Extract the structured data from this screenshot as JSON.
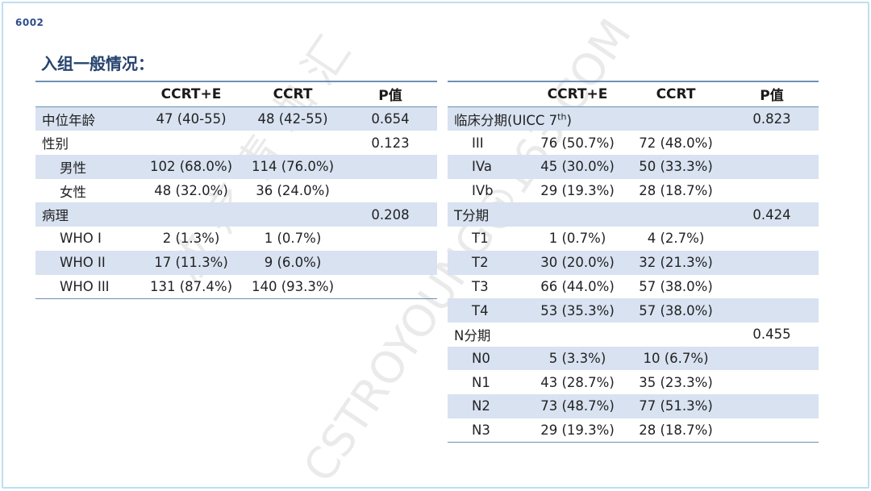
{
  "slide_id": "6002",
  "title": "入组一般情况：",
  "watermark": "放 疗 青 咖 汇",
  "watermark_sub": "CSTROYOUNG@163.COM",
  "left_table": {
    "headers": [
      "",
      "CCRT+E",
      "CCRT",
      "P值"
    ],
    "rows": [
      {
        "label": "中位年龄",
        "ccrt_e": "47 (40-55)",
        "ccrt": "48 (42-55)",
        "p": "0.654",
        "indent": false,
        "shade": true
      },
      {
        "label": "性别",
        "ccrt_e": "",
        "ccrt": "",
        "p": "0.123",
        "indent": false,
        "shade": false
      },
      {
        "label": "男性",
        "ccrt_e": "102 (68.0%)",
        "ccrt": "114 (76.0%)",
        "p": "",
        "indent": true,
        "shade": true
      },
      {
        "label": "女性",
        "ccrt_e": "48 (32.0%)",
        "ccrt": "36 (24.0%)",
        "p": "",
        "indent": true,
        "shade": false
      },
      {
        "label": "病理",
        "ccrt_e": "",
        "ccrt": "",
        "p": "0.208",
        "indent": false,
        "shade": true
      },
      {
        "label": "WHO I",
        "ccrt_e": "2 (1.3%)",
        "ccrt": "1 (0.7%)",
        "p": "",
        "indent": true,
        "shade": false
      },
      {
        "label": "WHO II",
        "ccrt_e": "17 (11.3%)",
        "ccrt": "9 (6.0%)",
        "p": "",
        "indent": true,
        "shade": true
      },
      {
        "label": "WHO III",
        "ccrt_e": "131 (87.4%)",
        "ccrt": "140 (93.3%)",
        "p": "",
        "indent": true,
        "shade": false
      }
    ]
  },
  "right_table": {
    "headers": [
      "",
      "CCRT+E",
      "CCRT",
      "P值"
    ],
    "rows": [
      {
        "label": "临床分期(UICC 7",
        "label_sup": "th",
        "label_tail": ")",
        "ccrt_e": "",
        "ccrt": "",
        "p": "0.823",
        "indent": false,
        "shade": true
      },
      {
        "label": "III",
        "ccrt_e": "76 (50.7%)",
        "ccrt": "72 (48.0%)",
        "p": "",
        "indent": true,
        "shade": false
      },
      {
        "label": "IVa",
        "ccrt_e": "45 (30.0%)",
        "ccrt": "50 (33.3%)",
        "p": "",
        "indent": true,
        "shade": true
      },
      {
        "label": "IVb",
        "ccrt_e": "29 (19.3%)",
        "ccrt": "28 (18.7%)",
        "p": "",
        "indent": true,
        "shade": false
      },
      {
        "label": "T分期",
        "ccrt_e": "",
        "ccrt": "",
        "p": "0.424",
        "indent": false,
        "shade": true
      },
      {
        "label": "T1",
        "ccrt_e": "1 (0.7%)",
        "ccrt": "4 (2.7%)",
        "p": "",
        "indent": true,
        "shade": false
      },
      {
        "label": "T2",
        "ccrt_e": "30 (20.0%)",
        "ccrt": "32 (21.3%)",
        "p": "",
        "indent": true,
        "shade": true
      },
      {
        "label": "T3",
        "ccrt_e": "66 (44.0%)",
        "ccrt": "57 (38.0%)",
        "p": "",
        "indent": true,
        "shade": false
      },
      {
        "label": "T4",
        "ccrt_e": "53 (35.3%)",
        "ccrt": "57 (38.0%)",
        "p": "",
        "indent": true,
        "shade": true
      },
      {
        "label": "N分期",
        "ccrt_e": "",
        "ccrt": "",
        "p": "0.455",
        "indent": false,
        "shade": false
      },
      {
        "label": "N0",
        "ccrt_e": "5 (3.3%)",
        "ccrt": "10 (6.7%)",
        "p": "",
        "indent": true,
        "shade": true
      },
      {
        "label": "N1",
        "ccrt_e": "43 (28.7%)",
        "ccrt": "35 (23.3%)",
        "p": "",
        "indent": true,
        "shade": false
      },
      {
        "label": "N2",
        "ccrt_e": "73 (48.7%)",
        "ccrt": "77 (51.3%)",
        "p": "",
        "indent": true,
        "shade": true
      },
      {
        "label": "N3",
        "ccrt_e": "29 (19.3%)",
        "ccrt": "28 (18.7%)",
        "p": "",
        "indent": true,
        "shade": false
      }
    ]
  }
}
